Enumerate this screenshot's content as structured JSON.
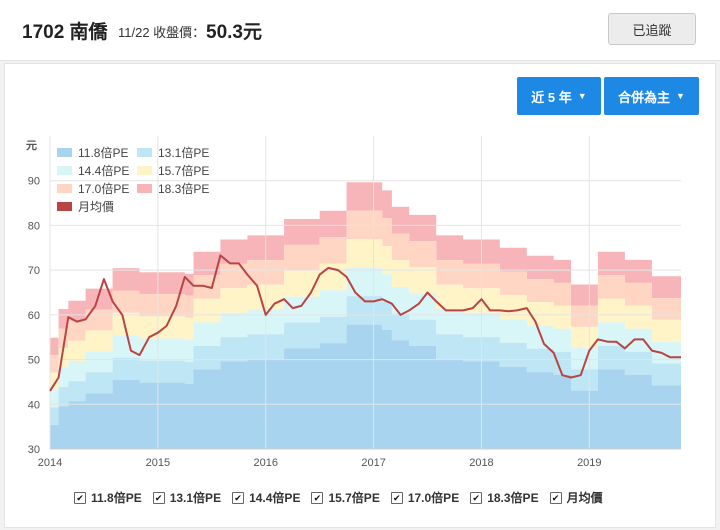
{
  "header": {
    "stock_title": "1702 南僑",
    "close_label": "11/22 收盤價：",
    "close_price": "50.3元",
    "follow_label": "已追蹤"
  },
  "controls": {
    "range_label": "近 5 年",
    "basis_label": "合併為主"
  },
  "legend": [
    {
      "label": "11.8倍PE",
      "color": "#a9d4f0"
    },
    {
      "label": "13.1倍PE",
      "color": "#bfe6f5"
    },
    {
      "label": "14.4倍PE",
      "color": "#d8f6f8"
    },
    {
      "label": "15.7倍PE",
      "color": "#fff4c8"
    },
    {
      "label": "17.0倍PE",
      "color": "#ffd6c4"
    },
    {
      "label": "18.3倍PE",
      "color": "#f7b5b9"
    },
    {
      "label": "月均價",
      "color": "#b84444"
    }
  ],
  "bottom_legend": [
    "11.8倍PE",
    "13.1倍PE",
    "14.4倍PE",
    "15.7倍PE",
    "17.0倍PE",
    "18.3倍PE",
    "月均價"
  ],
  "chart_data": {
    "type": "area",
    "ylabel": "元",
    "ylim": [
      30,
      100
    ],
    "yticks": [
      30,
      40,
      50,
      60,
      70,
      80,
      90
    ],
    "xlim": [
      2014.0,
      2019.85
    ],
    "xticks": [
      "2014",
      "2015",
      "2016",
      "2017",
      "2018",
      "2019"
    ],
    "grid": true,
    "legend_position": "top-left",
    "eps_steps": [
      {
        "x": 2014.0,
        "eps": 3.0
      },
      {
        "x": 2014.08,
        "eps": 3.35
      },
      {
        "x": 2014.17,
        "eps": 3.45
      },
      {
        "x": 2014.33,
        "eps": 3.6
      },
      {
        "x": 2014.58,
        "eps": 3.85
      },
      {
        "x": 2014.75,
        "eps": 3.85
      },
      {
        "x": 2014.83,
        "eps": 3.8
      },
      {
        "x": 2015.0,
        "eps": 3.8
      },
      {
        "x": 2015.25,
        "eps": 3.78
      },
      {
        "x": 2015.33,
        "eps": 4.05
      },
      {
        "x": 2015.58,
        "eps": 4.2
      },
      {
        "x": 2015.83,
        "eps": 4.25
      },
      {
        "x": 2016.08,
        "eps": 4.25
      },
      {
        "x": 2016.17,
        "eps": 4.45
      },
      {
        "x": 2016.5,
        "eps": 4.55
      },
      {
        "x": 2016.67,
        "eps": 4.55
      },
      {
        "x": 2016.75,
        "eps": 4.9
      },
      {
        "x": 2017.08,
        "eps": 4.8
      },
      {
        "x": 2017.17,
        "eps": 4.6
      },
      {
        "x": 2017.33,
        "eps": 4.5
      },
      {
        "x": 2017.58,
        "eps": 4.25
      },
      {
        "x": 2017.83,
        "eps": 4.2
      },
      {
        "x": 2018.17,
        "eps": 4.1
      },
      {
        "x": 2018.42,
        "eps": 4.0
      },
      {
        "x": 2018.67,
        "eps": 3.95
      },
      {
        "x": 2018.83,
        "eps": 3.65
      },
      {
        "x": 2019.08,
        "eps": 4.05
      },
      {
        "x": 2019.33,
        "eps": 3.95
      },
      {
        "x": 2019.58,
        "eps": 3.75
      },
      {
        "x": 2019.85,
        "eps": 3.85
      }
    ],
    "pe_multiples": [
      11.8,
      13.1,
      14.4,
      15.7,
      17.0,
      18.3
    ],
    "band_colors": [
      "#a9d4f0",
      "#bfe6f5",
      "#d8f6f8",
      "#fff4c8",
      "#ffd6c4",
      "#f7b5b9"
    ],
    "monthly_price": [
      [
        2014.0,
        43
      ],
      [
        2014.08,
        46
      ],
      [
        2014.17,
        59.5
      ],
      [
        2014.25,
        58.5
      ],
      [
        2014.33,
        59
      ],
      [
        2014.42,
        62
      ],
      [
        2014.5,
        68
      ],
      [
        2014.58,
        63
      ],
      [
        2014.67,
        60
      ],
      [
        2014.75,
        52
      ],
      [
        2014.83,
        51
      ],
      [
        2014.92,
        55
      ],
      [
        2015.0,
        56
      ],
      [
        2015.08,
        57.5
      ],
      [
        2015.17,
        62
      ],
      [
        2015.25,
        68.5
      ],
      [
        2015.33,
        66.5
      ],
      [
        2015.42,
        66.5
      ],
      [
        2015.5,
        66
      ],
      [
        2015.58,
        73.3
      ],
      [
        2015.67,
        71.5
      ],
      [
        2015.75,
        71.5
      ],
      [
        2015.83,
        69
      ],
      [
        2015.92,
        66.5
      ],
      [
        2016.0,
        60
      ],
      [
        2016.08,
        62.5
      ],
      [
        2016.17,
        63.5
      ],
      [
        2016.25,
        61.5
      ],
      [
        2016.33,
        62
      ],
      [
        2016.42,
        65
      ],
      [
        2016.5,
        69
      ],
      [
        2016.58,
        70.5
      ],
      [
        2016.67,
        70
      ],
      [
        2016.75,
        68.5
      ],
      [
        2016.83,
        65
      ],
      [
        2016.92,
        63
      ],
      [
        2017.0,
        63
      ],
      [
        2017.08,
        63.5
      ],
      [
        2017.17,
        62.5
      ],
      [
        2017.25,
        60
      ],
      [
        2017.33,
        61
      ],
      [
        2017.42,
        62.5
      ],
      [
        2017.5,
        65
      ],
      [
        2017.58,
        63
      ],
      [
        2017.67,
        61
      ],
      [
        2017.75,
        61
      ],
      [
        2017.83,
        61
      ],
      [
        2017.92,
        61.5
      ],
      [
        2018.0,
        63.5
      ],
      [
        2018.08,
        61
      ],
      [
        2018.17,
        61
      ],
      [
        2018.25,
        60.8
      ],
      [
        2018.33,
        61
      ],
      [
        2018.42,
        61.5
      ],
      [
        2018.5,
        58.5
      ],
      [
        2018.58,
        53.5
      ],
      [
        2018.67,
        51.5
      ],
      [
        2018.75,
        46.5
      ],
      [
        2018.83,
        46
      ],
      [
        2018.92,
        46.5
      ],
      [
        2019.0,
        52
      ],
      [
        2019.08,
        54.5
      ],
      [
        2019.17,
        54
      ],
      [
        2019.25,
        54
      ],
      [
        2019.33,
        52.5
      ],
      [
        2019.42,
        54.5
      ],
      [
        2019.5,
        54.5
      ],
      [
        2019.58,
        52
      ],
      [
        2019.67,
        51.5
      ],
      [
        2019.75,
        50.5
      ],
      [
        2019.85,
        50.5
      ]
    ],
    "price_color": "#b84444"
  }
}
